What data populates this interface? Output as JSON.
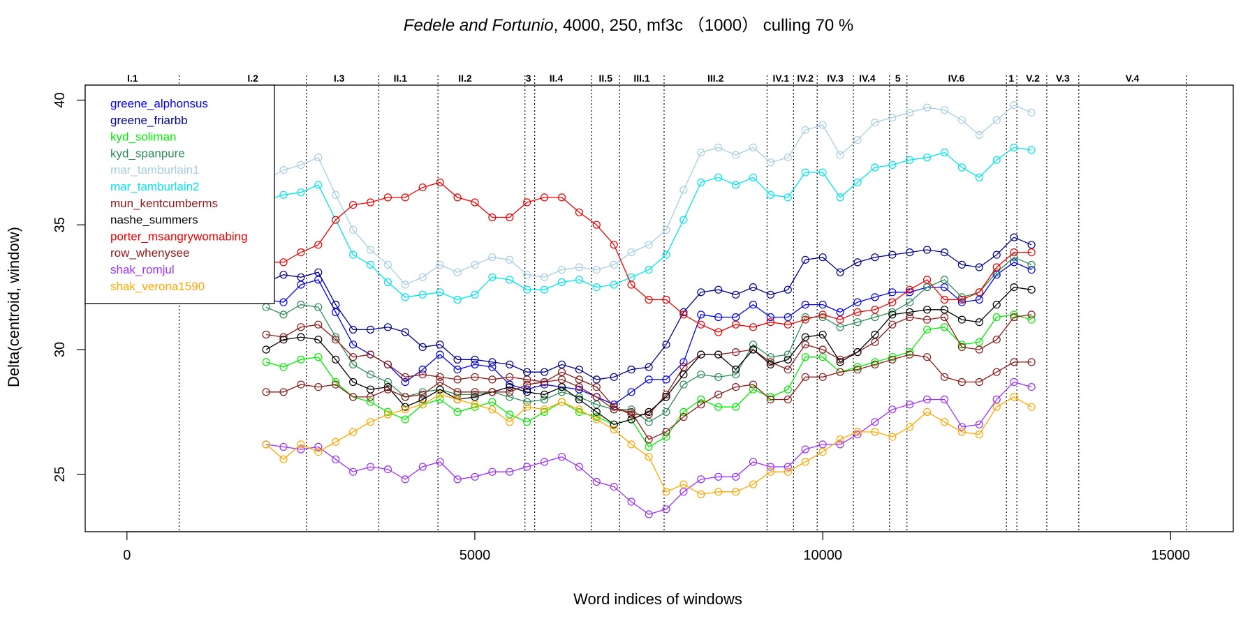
{
  "chart_data": {
    "type": "line",
    "title_parts": {
      "italic": "Fedele and Fortunio",
      "rest": ", 4000, 250, mf3c （1000） culling 70 %"
    },
    "xlabel": "Word indices of windows",
    "ylabel": "Delta(centroid, window)",
    "xlim": [
      -600,
      15900
    ],
    "ylim": [
      22.7,
      40.6
    ],
    "xticks": [
      0,
      5000,
      10000,
      15000
    ],
    "xtick_labels": [
      "0",
      "5000",
      "10000",
      "15000"
    ],
    "yticks": [
      25,
      30,
      35,
      40
    ],
    "ytick_labels": [
      "25",
      "30",
      "35",
      "40"
    ],
    "legend_position": "top-left",
    "scene_boundaries": [
      750,
      2580,
      3620,
      4470,
      5720,
      5860,
      6680,
      7080,
      7720,
      9200,
      9580,
      9920,
      10440,
      10960,
      11210,
      12640,
      12790,
      13220,
      13680,
      15230
    ],
    "scene_labels": [
      {
        "label": "I.1",
        "x": 80
      },
      {
        "label": "I.2",
        "x": 1810
      },
      {
        "label": "I.3",
        "x": 3050
      },
      {
        "label": "II.1",
        "x": 3930
      },
      {
        "label": "II.2",
        "x": 4860
      },
      {
        "label": "3",
        "x": 5770
      },
      {
        "label": "II.4",
        "x": 6170
      },
      {
        "label": "II.5",
        "x": 6880
      },
      {
        "label": "III.1",
        "x": 7400
      },
      {
        "label": "III.2",
        "x": 8460
      },
      {
        "label": "IV.1",
        "x": 9400
      },
      {
        "label": "IV.2",
        "x": 9750
      },
      {
        "label": "IV.3",
        "x": 10180
      },
      {
        "label": "IV.4",
        "x": 10640
      },
      {
        "label": "5",
        "x": 11080
      },
      {
        "label": "IV.6",
        "x": 11920
      },
      {
        "label": "1",
        "x": 12710
      },
      {
        "label": "V.2",
        "x": 13020
      },
      {
        "label": "V.3",
        "x": 13450
      },
      {
        "label": "V.4",
        "x": 14450
      }
    ],
    "x": [
      2000,
      2250,
      2500,
      2750,
      3000,
      3250,
      3500,
      3750,
      4000,
      4250,
      4500,
      4750,
      5000,
      5250,
      5500,
      5750,
      6000,
      6250,
      6500,
      6750,
      7000,
      7250,
      7500,
      7750,
      8000,
      8250,
      8500,
      8750,
      9000,
      9250,
      9500,
      9750,
      10000,
      10250,
      10500,
      10750,
      11000,
      11250,
      11500,
      11750,
      12000,
      12250,
      12500,
      12750,
      13000
    ],
    "series": [
      {
        "name": "greene_alphonsus",
        "color": "#0000EE",
        "values": [
          32.0,
          31.9,
          32.6,
          32.8,
          31.5,
          30.2,
          29.8,
          29.4,
          28.7,
          29.2,
          29.8,
          29.2,
          29.4,
          29.3,
          28.6,
          28.4,
          28.6,
          28.5,
          28.4,
          28.1,
          27.8,
          28.3,
          28.8,
          28.8,
          29.5,
          31.4,
          31.3,
          31.3,
          31.8,
          31.3,
          31.3,
          31.8,
          31.8,
          31.5,
          31.9,
          32.1,
          32.3,
          32.3,
          32.5,
          32.5,
          31.9,
          32.0,
          33.0,
          33.5,
          33.2
        ]
      },
      {
        "name": "greene_friarbb",
        "color": "#00008B",
        "values": [
          32.7,
          33.0,
          32.9,
          33.1,
          31.8,
          30.8,
          30.8,
          30.9,
          30.7,
          30.1,
          30.2,
          29.6,
          29.6,
          29.5,
          29.4,
          29.1,
          29.1,
          29.4,
          29.2,
          28.8,
          28.9,
          29.2,
          29.3,
          30.2,
          31.5,
          32.3,
          32.4,
          32.2,
          32.5,
          32.2,
          32.4,
          33.6,
          33.7,
          33.1,
          33.5,
          33.7,
          33.8,
          33.9,
          34.0,
          33.9,
          33.4,
          33.3,
          33.8,
          34.5,
          34.2
        ]
      },
      {
        "name": "kyd_soliman",
        "color": "#00EE00",
        "values": [
          29.5,
          29.3,
          29.6,
          29.7,
          28.7,
          28.1,
          27.9,
          27.5,
          27.2,
          27.8,
          28.0,
          27.5,
          27.7,
          27.9,
          27.4,
          27.1,
          27.5,
          27.9,
          27.5,
          27.3,
          27.0,
          27.2,
          26.1,
          26.5,
          27.5,
          28.0,
          27.7,
          27.7,
          28.4,
          28.1,
          28.4,
          29.7,
          29.7,
          29.1,
          29.3,
          29.5,
          29.7,
          29.9,
          30.8,
          30.9,
          30.2,
          30.3,
          31.3,
          31.4,
          31.2
        ]
      },
      {
        "name": "kyd_spanpure",
        "color": "#2E8B57",
        "values": [
          31.7,
          31.4,
          31.8,
          31.7,
          30.5,
          29.4,
          29.0,
          28.7,
          28.1,
          28.3,
          28.4,
          28.2,
          28.2,
          28.3,
          28.1,
          27.9,
          28.0,
          28.3,
          28.1,
          27.8,
          27.6,
          27.6,
          27.1,
          27.5,
          28.6,
          29.0,
          28.9,
          29.0,
          30.2,
          29.7,
          29.8,
          31.3,
          31.3,
          30.9,
          31.1,
          31.3,
          31.5,
          31.9,
          32.5,
          32.8,
          32.1,
          32.3,
          33.1,
          33.7,
          33.4
        ]
      },
      {
        "name": "mar_tamburlain1",
        "color": "#A6CEE3",
        "values": [
          36.8,
          37.2,
          37.4,
          37.7,
          36.2,
          34.8,
          34.0,
          33.4,
          32.6,
          32.9,
          33.4,
          33.1,
          33.4,
          33.7,
          33.6,
          33.0,
          32.9,
          33.2,
          33.3,
          33.2,
          33.4,
          33.9,
          34.2,
          34.8,
          36.4,
          37.9,
          38.1,
          37.8,
          38.1,
          37.5,
          37.7,
          38.8,
          39.0,
          37.8,
          38.4,
          39.1,
          39.3,
          39.5,
          39.7,
          39.6,
          39.2,
          38.6,
          39.2,
          39.8,
          39.5
        ]
      },
      {
        "name": "mar_tamburlain2",
        "color": "#00E5EE",
        "values": [
          36.0,
          36.2,
          36.3,
          36.6,
          35.2,
          33.8,
          33.4,
          32.7,
          32.1,
          32.2,
          32.3,
          32.0,
          32.2,
          32.9,
          32.8,
          32.4,
          32.4,
          32.7,
          32.8,
          32.5,
          32.6,
          32.9,
          33.2,
          33.8,
          35.2,
          36.7,
          36.9,
          36.6,
          36.9,
          36.2,
          36.1,
          37.1,
          37.1,
          36.1,
          36.7,
          37.3,
          37.4,
          37.6,
          37.7,
          37.9,
          37.3,
          36.9,
          37.6,
          38.1,
          38.0
        ]
      },
      {
        "name": "mun_kentcumberms",
        "color": "#8B1A1A",
        "values": [
          30.6,
          30.5,
          30.9,
          31.0,
          30.4,
          29.7,
          29.8,
          29.4,
          28.9,
          29.0,
          28.9,
          28.8,
          28.9,
          28.8,
          28.9,
          28.8,
          28.7,
          29.1,
          28.8,
          28.5,
          27.7,
          27.4,
          27.4,
          28.2,
          29.3,
          29.8,
          29.8,
          29.9,
          30.0,
          29.5,
          29.2,
          30.2,
          30.0,
          29.6,
          29.9,
          30.3,
          31.0,
          31.3,
          31.2,
          31.3,
          30.1,
          30.0,
          30.4,
          31.3,
          31.4
        ]
      },
      {
        "name": "nashe_summers",
        "color": "#000000",
        "values": [
          30.0,
          30.4,
          30.5,
          30.4,
          29.6,
          28.7,
          28.4,
          28.5,
          27.7,
          28.0,
          28.4,
          28.0,
          28.1,
          28.3,
          28.5,
          28.3,
          28.2,
          28.5,
          28.0,
          27.5,
          27.0,
          27.2,
          27.5,
          28.1,
          29.0,
          29.8,
          29.8,
          29.2,
          30.0,
          29.4,
          29.6,
          30.5,
          30.6,
          29.5,
          29.9,
          30.6,
          31.4,
          31.5,
          31.6,
          31.6,
          31.2,
          31.1,
          31.8,
          32.5,
          32.4
        ]
      },
      {
        "name": "porter_msangrywomabing",
        "color": "#EE0000",
        "values": [
          33.5,
          33.5,
          33.9,
          34.2,
          35.2,
          35.8,
          35.9,
          36.1,
          36.1,
          36.5,
          36.7,
          36.1,
          35.9,
          35.3,
          35.3,
          35.9,
          36.1,
          36.1,
          35.5,
          35.0,
          34.2,
          32.6,
          32.0,
          32.0,
          31.4,
          31.0,
          30.7,
          31.0,
          30.9,
          31.1,
          31.0,
          31.2,
          31.4,
          31.2,
          31.5,
          31.6,
          31.9,
          32.4,
          32.8,
          32.0,
          32.0,
          32.3,
          33.3,
          33.9,
          33.9
        ]
      },
      {
        "name": "row_whenysee",
        "color": "#8B1A1A",
        "values": [
          28.3,
          28.3,
          28.6,
          28.5,
          28.6,
          28.1,
          28.1,
          28.4,
          28.1,
          28.2,
          28.7,
          28.3,
          28.3,
          28.3,
          28.3,
          28.6,
          28.7,
          28.8,
          28.5,
          28.1,
          27.6,
          27.5,
          26.4,
          26.7,
          27.3,
          27.8,
          28.2,
          28.5,
          28.6,
          28.0,
          28.0,
          28.9,
          28.9,
          29.1,
          29.2,
          29.4,
          29.6,
          29.8,
          29.7,
          28.9,
          28.7,
          28.7,
          29.1,
          29.5,
          29.5
        ]
      },
      {
        "name": "shak_romjul",
        "color": "#9B30FF",
        "values": [
          26.2,
          26.1,
          26.0,
          26.1,
          25.6,
          25.1,
          25.3,
          25.2,
          24.8,
          25.3,
          25.5,
          24.8,
          24.9,
          25.1,
          25.1,
          25.3,
          25.5,
          25.7,
          25.3,
          24.7,
          24.5,
          23.9,
          23.4,
          23.6,
          24.3,
          24.8,
          24.9,
          24.9,
          25.5,
          25.3,
          25.3,
          26.0,
          26.2,
          26.2,
          26.6,
          27.1,
          27.6,
          27.8,
          28.0,
          28.0,
          26.9,
          27.0,
          28.0,
          28.7,
          28.5
        ]
      },
      {
        "name": "shak_verona1590",
        "color": "#FFA500",
        "values": [
          26.2,
          25.6,
          26.2,
          25.9,
          26.3,
          26.7,
          27.1,
          27.4,
          27.6,
          27.8,
          28.2,
          28.0,
          27.8,
          27.6,
          27.1,
          27.7,
          27.6,
          27.9,
          27.6,
          27.2,
          26.8,
          26.2,
          25.7,
          24.3,
          24.6,
          24.2,
          24.3,
          24.3,
          24.6,
          25.1,
          25.1,
          25.5,
          25.9,
          26.4,
          26.7,
          26.7,
          26.5,
          26.9,
          27.5,
          27.1,
          26.7,
          26.6,
          27.7,
          28.1,
          27.7
        ]
      }
    ]
  }
}
